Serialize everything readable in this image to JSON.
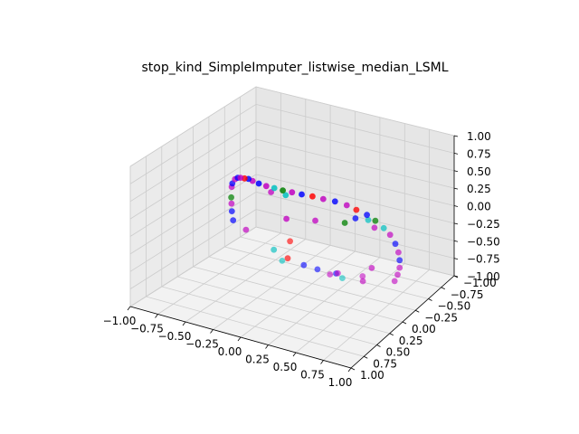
{
  "chart_data": {
    "type": "scatter",
    "projection": "3d",
    "title": "stop_kind_SimpleImputer_listwise_median_LSML",
    "xlabel": "",
    "ylabel": "",
    "zlabel": "",
    "xlim": [
      -1.0,
      1.0
    ],
    "ylim": [
      -1.0,
      1.0
    ],
    "zlim": [
      -1.0,
      1.0
    ],
    "x_ticks": [
      "−1.00",
      "−0.75",
      "−0.50",
      "−0.25",
      "0.00",
      "0.25",
      "0.50",
      "0.75",
      "1.00"
    ],
    "y_ticks": [
      "−1.00",
      "−0.75",
      "−0.50",
      "−0.25",
      "0.00",
      "0.25",
      "0.50",
      "0.75",
      "1.00"
    ],
    "z_ticks": [
      "−1.00",
      "−0.75",
      "−0.50",
      "−0.25",
      "0.00",
      "0.25",
      "0.50",
      "0.75",
      "1.00"
    ],
    "grid": true,
    "legend": "none",
    "colors": {
      "magenta": "#c000c0",
      "blue": "#0000ff",
      "red": "#ff0000",
      "green": "#008000",
      "cyan": "#00bfbf"
    },
    "points": [
      {
        "x": -0.62,
        "y": 0.02,
        "z": 0.3,
        "c": "magenta"
      },
      {
        "x": -0.58,
        "y": 0.08,
        "z": 0.4,
        "c": "blue"
      },
      {
        "x": -0.52,
        "y": 0.14,
        "z": 0.52,
        "c": "magenta"
      },
      {
        "x": -0.46,
        "y": 0.2,
        "z": 0.6,
        "c": "blue"
      },
      {
        "x": -0.4,
        "y": 0.26,
        "z": 0.66,
        "c": "magenta"
      },
      {
        "x": -0.34,
        "y": 0.3,
        "z": 0.7,
        "c": "red"
      },
      {
        "x": -0.28,
        "y": 0.34,
        "z": 0.74,
        "c": "blue"
      },
      {
        "x": -0.22,
        "y": 0.38,
        "z": 0.76,
        "c": "magenta"
      },
      {
        "x": -0.14,
        "y": 0.42,
        "z": 0.78,
        "c": "blue"
      },
      {
        "x": -0.06,
        "y": 0.44,
        "z": 0.79,
        "c": "magenta"
      },
      {
        "x": 0.02,
        "y": 0.45,
        "z": 0.8,
        "c": "cyan"
      },
      {
        "x": 0.1,
        "y": 0.45,
        "z": 0.8,
        "c": "green"
      },
      {
        "x": 0.18,
        "y": 0.44,
        "z": 0.8,
        "c": "magenta"
      },
      {
        "x": 0.26,
        "y": 0.42,
        "z": 0.79,
        "c": "blue"
      },
      {
        "x": 0.34,
        "y": 0.38,
        "z": 0.77,
        "c": "red"
      },
      {
        "x": 0.42,
        "y": 0.34,
        "z": 0.74,
        "c": "magenta"
      },
      {
        "x": 0.5,
        "y": 0.28,
        "z": 0.7,
        "c": "blue"
      },
      {
        "x": 0.58,
        "y": 0.22,
        "z": 0.64,
        "c": "magenta"
      },
      {
        "x": 0.64,
        "y": 0.16,
        "z": 0.56,
        "c": "red"
      },
      {
        "x": 0.7,
        "y": 0.08,
        "z": 0.46,
        "c": "blue"
      },
      {
        "x": 0.74,
        "y": 0.0,
        "z": 0.34,
        "c": "green"
      },
      {
        "x": 0.78,
        "y": -0.08,
        "z": 0.2,
        "c": "cyan"
      },
      {
        "x": 0.8,
        "y": -0.16,
        "z": 0.06,
        "c": "magenta"
      },
      {
        "x": 0.82,
        "y": -0.22,
        "z": -0.1,
        "c": "blue"
      },
      {
        "x": 0.82,
        "y": -0.28,
        "z": -0.26,
        "c": "magenta"
      },
      {
        "x": 0.8,
        "y": -0.34,
        "z": -0.42,
        "c": "blue"
      },
      {
        "x": 0.78,
        "y": -0.38,
        "z": -0.56,
        "c": "magenta"
      },
      {
        "x": 0.74,
        "y": -0.42,
        "z": -0.7,
        "c": "magenta"
      },
      {
        "x": 0.7,
        "y": -0.44,
        "z": -0.82,
        "c": "magenta"
      },
      {
        "x": -0.66,
        "y": -0.04,
        "z": 0.1,
        "c": "green"
      },
      {
        "x": -0.68,
        "y": -0.08,
        "z": -0.02,
        "c": "magenta"
      },
      {
        "x": -0.7,
        "y": -0.12,
        "z": -0.16,
        "c": "blue"
      },
      {
        "x": -0.7,
        "y": -0.14,
        "z": -0.3,
        "c": "blue"
      },
      {
        "x": -0.6,
        "y": -0.18,
        "z": -0.42,
        "c": "magenta"
      },
      {
        "x": -0.2,
        "y": 0.1,
        "z": 0.44,
        "c": "magenta"
      },
      {
        "x": 0.0,
        "y": 0.2,
        "z": 0.2,
        "c": "magenta"
      },
      {
        "x": 0.1,
        "y": 0.4,
        "z": 0.7,
        "c": "cyan"
      },
      {
        "x": 0.22,
        "y": 0.1,
        "z": 0.2,
        "c": "magenta"
      },
      {
        "x": 0.5,
        "y": 0.1,
        "z": 0.28,
        "c": "green"
      },
      {
        "x": 0.55,
        "y": 0.0,
        "z": 0.3,
        "c": "blue"
      },
      {
        "x": 0.62,
        "y": -0.1,
        "z": 0.24,
        "c": "cyan"
      },
      {
        "x": 0.66,
        "y": -0.14,
        "z": 0.12,
        "c": "magenta"
      },
      {
        "x": 0.55,
        "y": -0.3,
        "z": -0.6,
        "c": "magenta"
      },
      {
        "x": 0.4,
        "y": -0.42,
        "z": -0.92,
        "c": "magenta"
      },
      {
        "x": 0.1,
        "y": -0.52,
        "z": -0.98,
        "c": "magenta"
      },
      {
        "x": -0.3,
        "y": -0.4,
        "z": -0.6,
        "c": "red"
      },
      {
        "x": -0.4,
        "y": -0.3,
        "z": -0.7,
        "c": "cyan"
      },
      {
        "x": -0.3,
        "y": -0.36,
        "z": -0.82,
        "c": "red"
      },
      {
        "x": -0.4,
        "y": -0.44,
        "z": -0.94,
        "c": "cyan"
      },
      {
        "x": -0.2,
        "y": -0.46,
        "z": -0.94,
        "c": "blue"
      },
      {
        "x": -0.1,
        "y": -0.52,
        "z": -1.0,
        "c": "blue"
      },
      {
        "x": 0.0,
        "y": -0.56,
        "z": -1.06,
        "c": "magenta"
      },
      {
        "x": 0.05,
        "y": -0.58,
        "z": -1.04,
        "c": "blue"
      },
      {
        "x": 0.1,
        "y": -0.6,
        "z": -1.1,
        "c": "cyan"
      },
      {
        "x": 0.3,
        "y": -0.6,
        "z": -1.0,
        "c": "magenta"
      }
    ]
  }
}
